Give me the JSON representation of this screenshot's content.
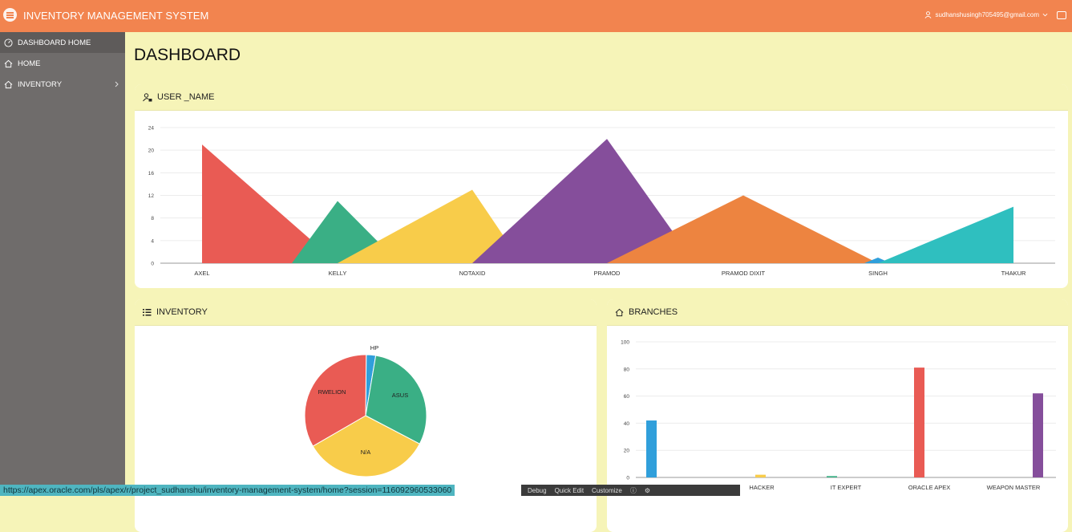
{
  "header": {
    "title": "INVENTORY MANAGEMENT SYSTEM",
    "user_email": "sudhanshusingh705495@gmail.com"
  },
  "sidebar": {
    "items": [
      {
        "label": "DASHBOARD HOME",
        "icon": "dashboard-icon"
      },
      {
        "label": "HOME",
        "icon": "home-icon"
      },
      {
        "label": "INVENTORY",
        "icon": "home-icon"
      }
    ]
  },
  "page": {
    "title": "DASHBOARD"
  },
  "regions": {
    "user_name": "USER _NAME",
    "inventory": "INVENTORY",
    "branches": "BRANCHES"
  },
  "footer": {
    "url": "https://apex.oracle.com/pls/apex/r/project_sudhanshu/inventory-management-system/home?session=116092960533060",
    "debug": "Debug",
    "quick_edit": "Quick Edit",
    "customize": "Customize"
  },
  "chart_data": [
    {
      "type": "area",
      "categories": [
        "AXEL",
        "KELLY",
        "NOTAXID",
        "PRAMOD",
        "PRAMOD DIXIT",
        "SINGH",
        "THAKUR"
      ],
      "values": [
        21,
        11,
        13,
        22,
        12,
        1,
        10
      ],
      "colors": [
        "#e95b54",
        "#3aaf85",
        "#f8cc4a",
        "#854e9b",
        "#ed8440",
        "#309fdb",
        "#2fbfbf"
      ],
      "yticks": [
        0,
        4,
        8,
        12,
        16,
        20,
        24
      ],
      "ylim": [
        0,
        24
      ],
      "grid": true
    },
    {
      "type": "pie",
      "labels": [
        "HP",
        "ASUS",
        "N/A",
        "RWELION"
      ],
      "values": [
        2.5,
        30,
        34,
        33.5
      ],
      "colors": [
        "#309fdb",
        "#3aaf85",
        "#f8cc4a",
        "#e95b54"
      ]
    },
    {
      "type": "bar",
      "categories": [
        "",
        "HACKER",
        "IT EXPERT",
        "ORACLE APEX",
        "WEAPON MASTER"
      ],
      "series_values": [
        42,
        2,
        1,
        81,
        62
      ],
      "colors": [
        "#309fdb",
        "#f8cc4a",
        "#3aaf85",
        "#e95b54",
        "#854e9b"
      ],
      "yticks": [
        0,
        20,
        40,
        60,
        80,
        100
      ],
      "ylim": [
        0,
        100
      ],
      "grid": true
    }
  ]
}
